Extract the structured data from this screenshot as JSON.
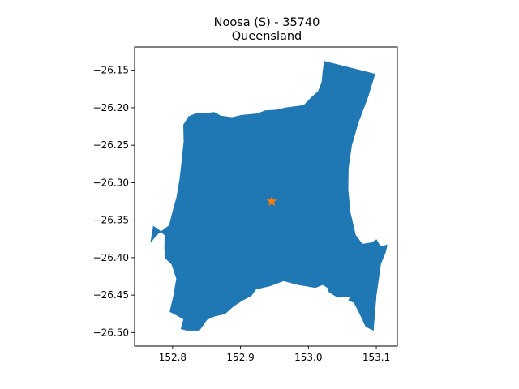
{
  "title": "Noosa (S) - 35740",
  "subtitle": "Queensland",
  "colors": {
    "region_fill": "#1f77b4",
    "marker": "#ff7f0e",
    "axis": "#000000"
  },
  "chart_data": {
    "type": "map",
    "title": "Noosa (S) - 35740",
    "subtitle": "Queensland",
    "xlabel": "",
    "ylabel": "",
    "xlim": [
      152.744,
      153.131
    ],
    "ylim": [
      -26.518,
      -26.119
    ],
    "x_ticks": [
      152.8,
      152.9,
      153.0,
      153.1
    ],
    "x_tick_labels": [
      "152.8",
      "152.9",
      "153.0",
      "153.1"
    ],
    "y_ticks": [
      -26.15,
      -26.2,
      -26.25,
      -26.3,
      -26.35,
      -26.4,
      -26.45,
      -26.5
    ],
    "y_tick_labels": [
      "−26.15",
      "−26.20",
      "−26.25",
      "−26.30",
      "−26.35",
      "−26.40",
      "−26.45",
      "−26.50"
    ],
    "grid": false,
    "centroid": {
      "lon": 152.946,
      "lat": -26.325,
      "marker": "star"
    },
    "region_outline": [
      [
        153.0233,
        -26.138
      ],
      [
        153.098,
        -26.155
      ],
      [
        153.0875,
        -26.186
      ],
      [
        153.0733,
        -26.22
      ],
      [
        153.0638,
        -26.25
      ],
      [
        153.0589,
        -26.28
      ],
      [
        153.0584,
        -26.31
      ],
      [
        153.0617,
        -26.34
      ],
      [
        153.0694,
        -26.37
      ],
      [
        153.0794,
        -26.382
      ],
      [
        153.0931,
        -26.38
      ],
      [
        153.1002,
        -26.376
      ],
      [
        153.1046,
        -26.383
      ],
      [
        153.108,
        -26.385
      ],
      [
        153.116,
        -26.383
      ],
      [
        153.1136,
        -26.393
      ],
      [
        153.1066,
        -26.408
      ],
      [
        153.1,
        -26.45
      ],
      [
        153.0956,
        -26.497
      ],
      [
        153.0845,
        -26.492
      ],
      [
        153.0751,
        -26.474
      ],
      [
        153.0672,
        -26.46
      ],
      [
        153.0592,
        -26.457
      ],
      [
        153.0616,
        -26.452
      ],
      [
        153.043,
        -26.453
      ],
      [
        153.0305,
        -26.446
      ],
      [
        153.028,
        -26.44
      ],
      [
        153.0213,
        -26.436
      ],
      [
        153.0102,
        -26.44
      ],
      [
        152.9841,
        -26.436
      ],
      [
        152.9637,
        -26.431
      ],
      [
        152.9429,
        -26.438
      ],
      [
        152.9229,
        -26.442
      ],
      [
        152.9158,
        -26.451
      ],
      [
        152.9029,
        -26.457
      ],
      [
        152.8892,
        -26.465
      ],
      [
        152.8772,
        -26.475
      ],
      [
        152.8624,
        -26.478
      ],
      [
        152.8503,
        -26.483
      ],
      [
        152.8396,
        -26.497
      ],
      [
        152.8204,
        -26.497
      ],
      [
        152.8123,
        -26.495
      ],
      [
        152.8163,
        -26.482
      ],
      [
        152.796,
        -26.472
      ],
      [
        152.8015,
        -26.451
      ],
      [
        152.8057,
        -26.428
      ],
      [
        152.7987,
        -26.409
      ],
      [
        152.7898,
        -26.401
      ],
      [
        152.7882,
        -26.389
      ],
      [
        152.7885,
        -26.37
      ],
      [
        152.781,
        -26.364
      ],
      [
        152.7716,
        -26.358
      ],
      [
        152.7677,
        -26.38
      ],
      [
        152.7759,
        -26.37
      ],
      [
        152.7951,
        -26.357
      ],
      [
        152.8006,
        -26.337
      ],
      [
        152.8059,
        -26.32
      ],
      [
        152.8107,
        -26.295
      ],
      [
        152.8134,
        -26.273
      ],
      [
        152.8166,
        -26.245
      ],
      [
        152.816,
        -26.223
      ],
      [
        152.8233,
        -26.212
      ],
      [
        152.8362,
        -26.207
      ],
      [
        152.8527,
        -26.207
      ],
      [
        152.8614,
        -26.206
      ],
      [
        152.8709,
        -26.211
      ],
      [
        152.8875,
        -26.213
      ],
      [
        152.9018,
        -26.21
      ],
      [
        152.9141,
        -26.209
      ],
      [
        152.9252,
        -26.208
      ],
      [
        152.9361,
        -26.204
      ],
      [
        152.9526,
        -26.203
      ],
      [
        152.967,
        -26.2
      ],
      [
        152.9931,
        -26.197
      ],
      [
        153.0047,
        -26.186
      ],
      [
        153.0145,
        -26.178
      ],
      [
        153.0198,
        -26.166
      ],
      [
        153.0212,
        -26.152
      ],
      [
        153.0233,
        -26.138
      ]
    ]
  }
}
